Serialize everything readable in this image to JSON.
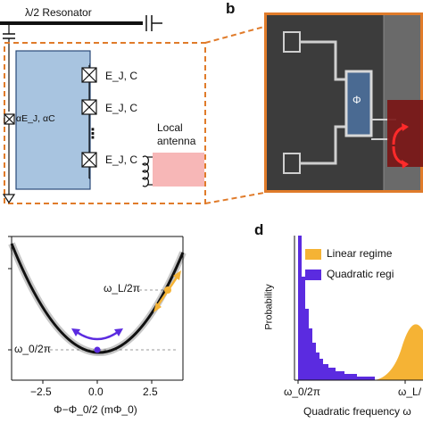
{
  "panel_a": {
    "resonator_label": "λ/2 Resonator",
    "ground_label": "αE_J, αC",
    "junction_label": "E_J, C",
    "dots": "⋮",
    "antenna_label_line1": "Local",
    "antenna_label_line2": "antenna",
    "colors": {
      "island": "#a8c4e0",
      "antenna": "#f7b7b7",
      "dashed": "#e07b2a"
    }
  },
  "panel_b": {
    "letter": "b",
    "flux_symbol": "Φ"
  },
  "panel_c": {
    "omega_L_label": "ω_L/2π",
    "omega_0_label": "ω_0/2π",
    "xlabel": "Φ−Φ_0/2 (mΦ_0)",
    "x_ticks": [
      "−2.5",
      "0.0",
      "2.5"
    ],
    "colors": {
      "linear": "#f5b335",
      "quadratic": "#5b2be0"
    }
  },
  "panel_d": {
    "letter": "d",
    "ylabel": "Probability",
    "xlabel": "Quadratic frequency ω",
    "x_ticks": [
      "ω_0/2π",
      "ω_L/"
    ],
    "legend": [
      "Linear regime",
      "Quadratic regi"
    ],
    "colors": {
      "linear": "#f5b335",
      "quadratic": "#5b2be0"
    }
  }
}
